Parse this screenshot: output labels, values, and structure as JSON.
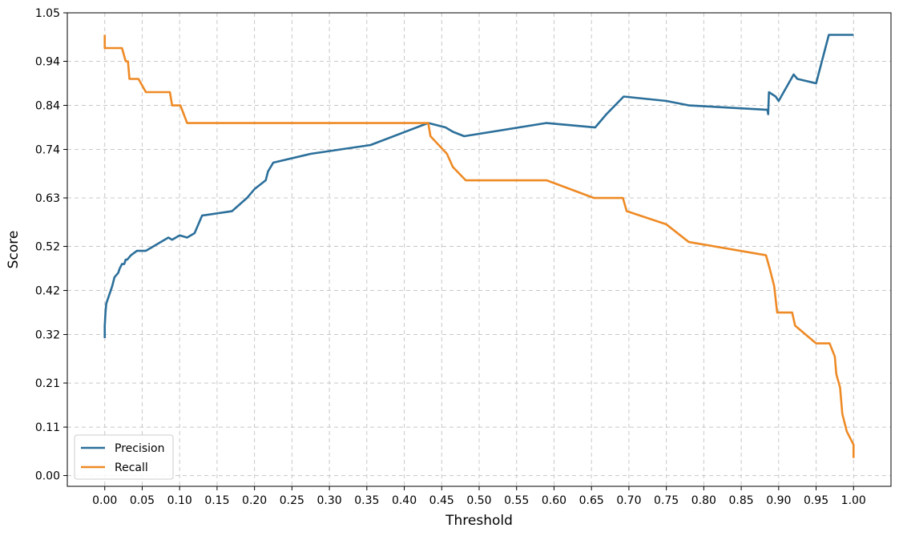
{
  "chart_data": {
    "type": "line",
    "title": "",
    "xlabel": "Threshold",
    "ylabel": "Score",
    "xlim": [
      -0.05,
      1.05
    ],
    "ylim": [
      -0.0244,
      1.05
    ],
    "xticks": [
      "0.00",
      "0.05",
      "0.10",
      "0.15",
      "0.20",
      "0.25",
      "0.30",
      "0.35",
      "0.40",
      "0.45",
      "0.50",
      "0.55",
      "0.60",
      "0.65",
      "0.70",
      "0.75",
      "0.80",
      "0.85",
      "0.90",
      "0.95",
      "1.00"
    ],
    "yticks": [
      "0.00",
      "0.11",
      "0.21",
      "0.32",
      "0.42",
      "0.52",
      "0.63",
      "0.74",
      "0.84",
      "0.94",
      "1.05"
    ],
    "grid": true,
    "legend_position": "lower-left",
    "series": [
      {
        "name": "Precision",
        "color": "#2b6f9a",
        "points": [
          [
            0.0,
            0.312
          ],
          [
            0.0,
            0.34
          ],
          [
            0.001,
            0.37
          ],
          [
            0.002,
            0.39
          ],
          [
            0.006,
            0.41
          ],
          [
            0.01,
            0.43
          ],
          [
            0.013,
            0.45
          ],
          [
            0.018,
            0.46
          ],
          [
            0.02,
            0.47
          ],
          [
            0.023,
            0.48
          ],
          [
            0.026,
            0.48
          ],
          [
            0.028,
            0.49
          ],
          [
            0.03,
            0.49
          ],
          [
            0.035,
            0.5
          ],
          [
            0.043,
            0.51
          ],
          [
            0.055,
            0.51
          ],
          [
            0.065,
            0.52
          ],
          [
            0.085,
            0.54
          ],
          [
            0.09,
            0.535
          ],
          [
            0.1,
            0.545
          ],
          [
            0.11,
            0.54
          ],
          [
            0.12,
            0.55
          ],
          [
            0.13,
            0.59
          ],
          [
            0.17,
            0.6
          ],
          [
            0.19,
            0.63
          ],
          [
            0.2,
            0.65
          ],
          [
            0.215,
            0.67
          ],
          [
            0.218,
            0.69
          ],
          [
            0.225,
            0.71
          ],
          [
            0.275,
            0.73
          ],
          [
            0.355,
            0.75
          ],
          [
            0.432,
            0.8
          ],
          [
            0.455,
            0.79
          ],
          [
            0.465,
            0.78
          ],
          [
            0.48,
            0.77
          ],
          [
            0.59,
            0.8
          ],
          [
            0.655,
            0.79
          ],
          [
            0.67,
            0.82
          ],
          [
            0.693,
            0.86
          ],
          [
            0.75,
            0.85
          ],
          [
            0.78,
            0.84
          ],
          [
            0.885,
            0.83
          ],
          [
            0.886,
            0.82
          ],
          [
            0.887,
            0.87
          ],
          [
            0.896,
            0.86
          ],
          [
            0.9,
            0.85
          ],
          [
            0.92,
            0.91
          ],
          [
            0.925,
            0.9
          ],
          [
            0.95,
            0.89
          ],
          [
            0.967,
            1.0
          ],
          [
            1.0,
            1.0
          ]
        ]
      },
      {
        "name": "Recall",
        "color": "#ee8a25",
        "points": [
          [
            0.0,
            1.0
          ],
          [
            0.0,
            0.97
          ],
          [
            0.023,
            0.97
          ],
          [
            0.028,
            0.94
          ],
          [
            0.031,
            0.94
          ],
          [
            0.033,
            0.9
          ],
          [
            0.045,
            0.9
          ],
          [
            0.055,
            0.87
          ],
          [
            0.087,
            0.87
          ],
          [
            0.09,
            0.84
          ],
          [
            0.101,
            0.84
          ],
          [
            0.11,
            0.8
          ],
          [
            0.432,
            0.8
          ],
          [
            0.435,
            0.77
          ],
          [
            0.457,
            0.73
          ],
          [
            0.465,
            0.7
          ],
          [
            0.482,
            0.67
          ],
          [
            0.59,
            0.67
          ],
          [
            0.653,
            0.63
          ],
          [
            0.692,
            0.63
          ],
          [
            0.697,
            0.6
          ],
          [
            0.75,
            0.57
          ],
          [
            0.78,
            0.53
          ],
          [
            0.883,
            0.5
          ],
          [
            0.888,
            0.47
          ],
          [
            0.894,
            0.43
          ],
          [
            0.898,
            0.37
          ],
          [
            0.918,
            0.37
          ],
          [
            0.922,
            0.34
          ],
          [
            0.95,
            0.3
          ],
          [
            0.968,
            0.3
          ],
          [
            0.975,
            0.27
          ],
          [
            0.977,
            0.23
          ],
          [
            0.982,
            0.2
          ],
          [
            0.985,
            0.14
          ],
          [
            0.991,
            0.1
          ],
          [
            1.0,
            0.07
          ],
          [
            1.0,
            0.04
          ]
        ]
      }
    ]
  }
}
